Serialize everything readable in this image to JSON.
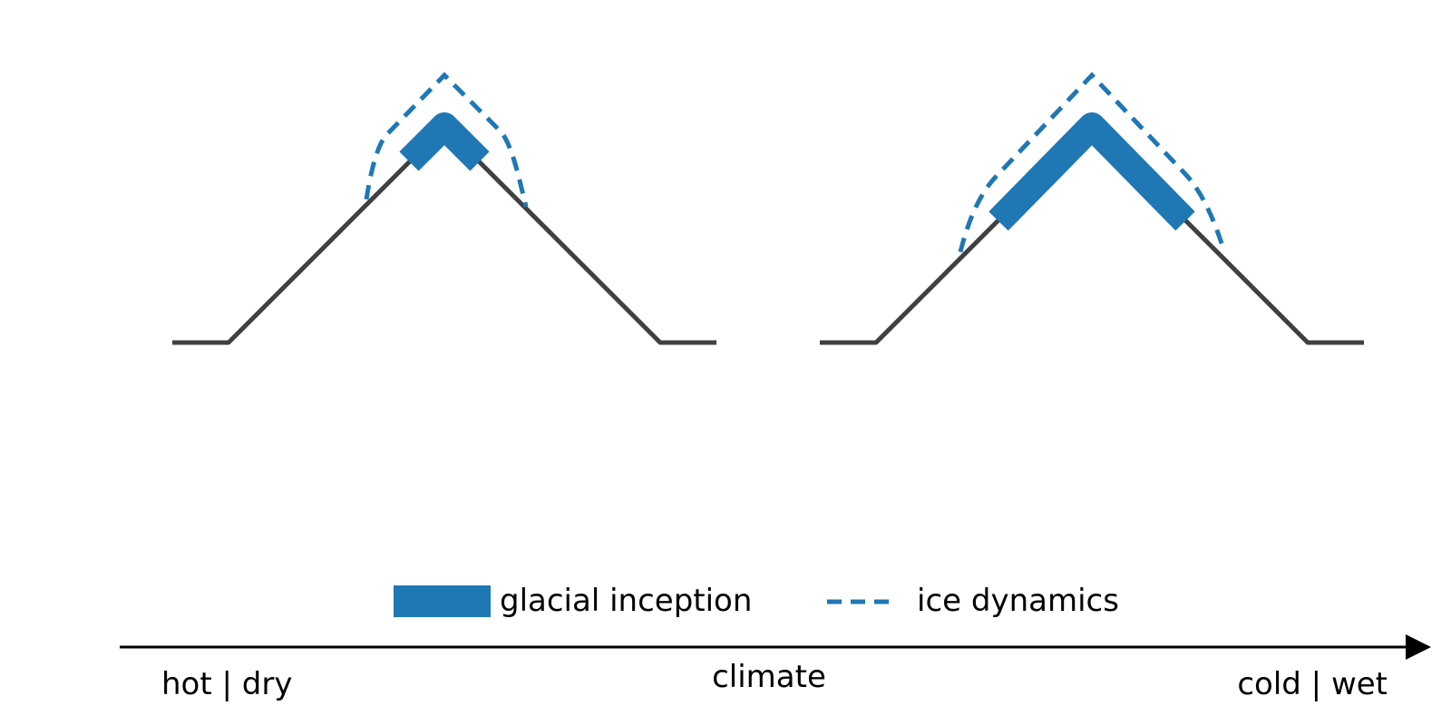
{
  "legend": {
    "glacial_label": "glacial inception",
    "ice_label": "ice dynamics"
  },
  "axis": {
    "left_label": "hot | dry",
    "center_label": "climate",
    "right_label": "cold | wet"
  },
  "colors": {
    "mountain": "#404040",
    "glacier": "#1f77b4",
    "ice_dynamics": "#1f77b4",
    "axis": "#000000"
  },
  "panels": [
    {
      "state": "hot | dry",
      "glacier_extent": "small"
    },
    {
      "state": "cold | wet",
      "glacier_extent": "large"
    }
  ]
}
